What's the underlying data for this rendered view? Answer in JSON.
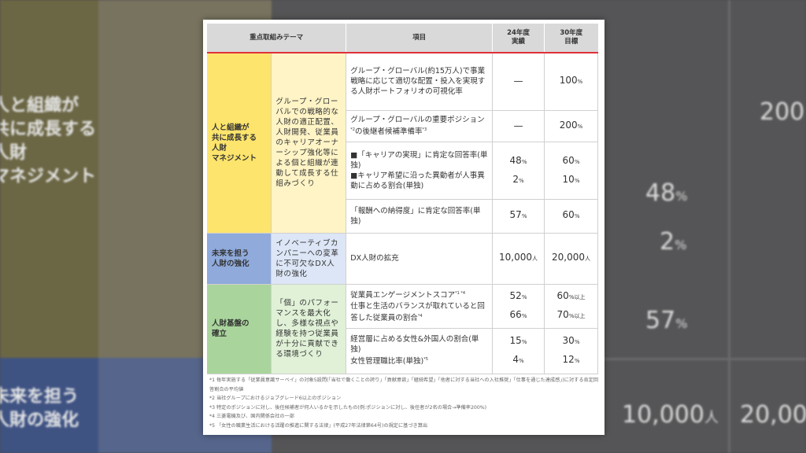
{
  "header": {
    "theme": "重点取組みテーマ",
    "item": "項目",
    "actual": "24年度\n実績",
    "target": "30年度\n目標"
  },
  "rows": [
    {
      "theme": "人と組織が\n共に成長する\n人財\nマネジメント",
      "sub": "グループ・グローバルでの戦略的な人財の適正配置、人財開発、従業員のキャリアオーナーシップ強化等による個と組織が連動して成長する仕組みづくり",
      "items": [
        {
          "text": "グループ・グローバル(約15万人)で事業戦略に応じて適切な配置・投入を実現する人財ポートフォリオの可視化率",
          "actual": "—",
          "target": "100",
          "target_unit": "%"
        },
        {
          "text": "グループ・グローバルの重要ポジション",
          "sup1": "*2",
          "text2": "の後継者候補準備率",
          "sup2": "*3",
          "actual": "—",
          "target": "200",
          "target_unit": "%"
        },
        {
          "text": "■「キャリアの実現」に肯定な回答率(単独)",
          "text2": "■キャリア希望に沿った異動者が人事異動に占める割合(単独)",
          "actual": "48",
          "actual_unit": "%",
          "actual2": "2",
          "actual2_unit": "%",
          "target": "60",
          "target_unit": "%",
          "target2": "10",
          "target2_unit": "%"
        },
        {
          "text": "「報酬への納得度」に肯定な回答率(単独)",
          "actual": "57",
          "actual_unit": "%",
          "target": "60",
          "target_unit": "%"
        }
      ]
    },
    {
      "theme": "未来を担う\n人財の強化",
      "sub": "イノベーティブカンパニーへの変革に不可欠なDX人財の強化",
      "items": [
        {
          "text": "DX人財の拡充",
          "actual": "10,000",
          "actual_unit": "人",
          "target": "20,000",
          "target_unit": "人"
        }
      ]
    },
    {
      "theme": "人財基盤の\n確立",
      "sub": "「個」のパフォーマンスを最大化し、多様な視点や経験を持つ従業員が十分に貢献できる環境づくり",
      "items": [
        {
          "text": "従業員エンゲージメントスコア",
          "sup1": "*1 *4",
          "text2": "仕事と生活のバランスが取れていると回答した従業員の割合",
          "sup2": "*4",
          "actual": "52",
          "actual_unit": "%",
          "actual2": "66",
          "actual2_unit": "%",
          "target": "60",
          "target_unit": "%以上",
          "target2": "70",
          "target2_unit": "%以上"
        },
        {
          "text": "経営層に占める女性&外国人の割合(単独)",
          "text2": "女性管理職比率(単独)",
          "sup2": "*5",
          "actual": "15",
          "actual_unit": "%",
          "actual2": "4",
          "actual2_unit": "%",
          "target": "30",
          "target_unit": "%",
          "target2": "12",
          "target2_unit": "%"
        }
      ]
    }
  ],
  "footnotes": [
    "*1 毎年実施する「従業員意識サーベイ」の対象5設問(「当社で働くことの誇り」「貢献意欲」「継続希望」「他者に対する当社への入社推奨」「仕事を通じた達成感」)に対する肯定回答割合の平均値",
    "*2 当社グループにおけるジョブグレード6以上のポジション",
    "*3 特定のポジションに対し、後任候補者が何人いるかを示したもの(例:ポジションに対し、後任者が2名の場合→準備率200%)",
    "*4 三菱電機及び、国内関係会社の一部",
    "*5 「女性の職業生活における活躍の推進に関する法律」(平成27年法律第64号)の規定に基づき算出"
  ],
  "colors": {
    "accent_line": "#e0303a",
    "yellow": "#fde46c",
    "blue": "#8faadb",
    "green": "#a9d59c"
  }
}
